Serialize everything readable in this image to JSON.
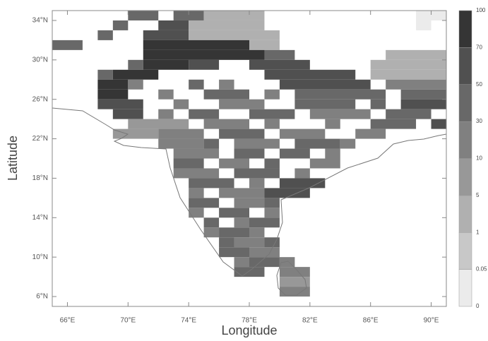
{
  "chart_data": {
    "type": "grid-map",
    "x_label": "Longitude",
    "y_label": "Latitude",
    "xlim": [
      65,
      91
    ],
    "ylim": [
      5,
      35
    ],
    "xticks": [
      {
        "value": 66,
        "label": "66°E"
      },
      {
        "value": 70,
        "label": "70°E"
      },
      {
        "value": 74,
        "label": "74°E"
      },
      {
        "value": 78,
        "label": "78°E"
      },
      {
        "value": 82,
        "label": "82°E"
      },
      {
        "value": 86,
        "label": "86°E"
      },
      {
        "value": 90,
        "label": "90°E"
      }
    ],
    "yticks": [
      {
        "value": 6,
        "label": "6°N"
      },
      {
        "value": 10,
        "label": "10°N"
      },
      {
        "value": 14,
        "label": "14°N"
      },
      {
        "value": 18,
        "label": "18°N"
      },
      {
        "value": 22,
        "label": "22°N"
      },
      {
        "value": 26,
        "label": "26°N"
      },
      {
        "value": 30,
        "label": "30°N"
      },
      {
        "value": 34,
        "label": "34°N"
      }
    ],
    "colorbar": {
      "levels": [
        0,
        0.05,
        1,
        5,
        10,
        30,
        50,
        70,
        100
      ],
      "colors": [
        "#ebebeb",
        "#c8c8c8",
        "#b0b0b0",
        "#989898",
        "#808080",
        "#686868",
        "#505050",
        "#353535"
      ]
    },
    "cells": [
      [
        70,
        72,
        34,
        5
      ],
      [
        73,
        75,
        34,
        5
      ],
      [
        75,
        79,
        34,
        2
      ],
      [
        89,
        91,
        34,
        0
      ],
      [
        69,
        70,
        33,
        5
      ],
      [
        72,
        74,
        33,
        6
      ],
      [
        74,
        79,
        33,
        2
      ],
      [
        89,
        90,
        33,
        0
      ],
      [
        68,
        69,
        32,
        5
      ],
      [
        71,
        74,
        32,
        6
      ],
      [
        74,
        80,
        32,
        2
      ],
      [
        65,
        67,
        31,
        5
      ],
      [
        71,
        78,
        31,
        7
      ],
      [
        78,
        80,
        31,
        2
      ],
      [
        71,
        79,
        30,
        7
      ],
      [
        79,
        81,
        30,
        5
      ],
      [
        87,
        91,
        30,
        2
      ],
      [
        70,
        71,
        29,
        5
      ],
      [
        71,
        74,
        29,
        7
      ],
      [
        74,
        76,
        29,
        6
      ],
      [
        78,
        82,
        29,
        6
      ],
      [
        86,
        91,
        29,
        2
      ],
      [
        68,
        69,
        28,
        5
      ],
      [
        69,
        72,
        28,
        7
      ],
      [
        79,
        85,
        28,
        6
      ],
      [
        86,
        91,
        28,
        2
      ],
      [
        68,
        70,
        27,
        7
      ],
      [
        70,
        71,
        27,
        4
      ],
      [
        74,
        75,
        27,
        5
      ],
      [
        76,
        77,
        27,
        4
      ],
      [
        80,
        86,
        27,
        6
      ],
      [
        87,
        91,
        27,
        4
      ],
      [
        68,
        70,
        26,
        7
      ],
      [
        72,
        73,
        26,
        4
      ],
      [
        75,
        78,
        26,
        5
      ],
      [
        79,
        80,
        26,
        4
      ],
      [
        81,
        87,
        26,
        5
      ],
      [
        88,
        91,
        26,
        5
      ],
      [
        68,
        71,
        25,
        6
      ],
      [
        73,
        74,
        25,
        4
      ],
      [
        76,
        79,
        25,
        4
      ],
      [
        81,
        85,
        25,
        5
      ],
      [
        86,
        87,
        25,
        5
      ],
      [
        88,
        91,
        25,
        6
      ],
      [
        69,
        71,
        24,
        6
      ],
      [
        72,
        73,
        24,
        4
      ],
      [
        74,
        76,
        24,
        5
      ],
      [
        78,
        81,
        24,
        5
      ],
      [
        82,
        86,
        24,
        4
      ],
      [
        87,
        90,
        24,
        5
      ],
      [
        70,
        74,
        23,
        3
      ],
      [
        75,
        78,
        23,
        4
      ],
      [
        79,
        80,
        23,
        4
      ],
      [
        83,
        84,
        23,
        4
      ],
      [
        86,
        89,
        23,
        5
      ],
      [
        90,
        91,
        23,
        6
      ],
      [
        69,
        72,
        22,
        3
      ],
      [
        72,
        75,
        22,
        4
      ],
      [
        76,
        79,
        22,
        5
      ],
      [
        80,
        83,
        22,
        4
      ],
      [
        85,
        87,
        22,
        4
      ],
      [
        72,
        75,
        21,
        4
      ],
      [
        75,
        76,
        21,
        5
      ],
      [
        77,
        80,
        21,
        4
      ],
      [
        81,
        84,
        21,
        5
      ],
      [
        84,
        85,
        21,
        4
      ],
      [
        73,
        76,
        20,
        4
      ],
      [
        77,
        79,
        20,
        5
      ],
      [
        80,
        82,
        20,
        5
      ],
      [
        83,
        84,
        20,
        4
      ],
      [
        73,
        75,
        19,
        5
      ],
      [
        76,
        78,
        19,
        4
      ],
      [
        79,
        80,
        19,
        5
      ],
      [
        82,
        84,
        19,
        4
      ],
      [
        73,
        76,
        18,
        4
      ],
      [
        77,
        80,
        18,
        5
      ],
      [
        81,
        82,
        18,
        4
      ],
      [
        74,
        77,
        17,
        5
      ],
      [
        78,
        79,
        17,
        4
      ],
      [
        80,
        83,
        17,
        6
      ],
      [
        74,
        75,
        16,
        4
      ],
      [
        76,
        79,
        16,
        4
      ],
      [
        79,
        82,
        16,
        6
      ],
      [
        74,
        76,
        15,
        5
      ],
      [
        77,
        79,
        15,
        4
      ],
      [
        79,
        80,
        15,
        5
      ],
      [
        74,
        75,
        14,
        4
      ],
      [
        76,
        78,
        14,
        5
      ],
      [
        79,
        80,
        14,
        4
      ],
      [
        75,
        76,
        13,
        5
      ],
      [
        77,
        78,
        13,
        4
      ],
      [
        78,
        80,
        13,
        5
      ],
      [
        75,
        76,
        12,
        4
      ],
      [
        76,
        78,
        12,
        5
      ],
      [
        78,
        79,
        12,
        4
      ],
      [
        76,
        77,
        11,
        5
      ],
      [
        77,
        79,
        11,
        4
      ],
      [
        79,
        80,
        11,
        5
      ],
      [
        76,
        78,
        10,
        5
      ],
      [
        78,
        80,
        10,
        4
      ],
      [
        77,
        78,
        9,
        4
      ],
      [
        78,
        80,
        9,
        5
      ],
      [
        80,
        81,
        9,
        4
      ],
      [
        77,
        79,
        8,
        5
      ],
      [
        80,
        82,
        8,
        4
      ],
      [
        80,
        82,
        7,
        3
      ],
      [
        80,
        82,
        6,
        4
      ]
    ]
  }
}
